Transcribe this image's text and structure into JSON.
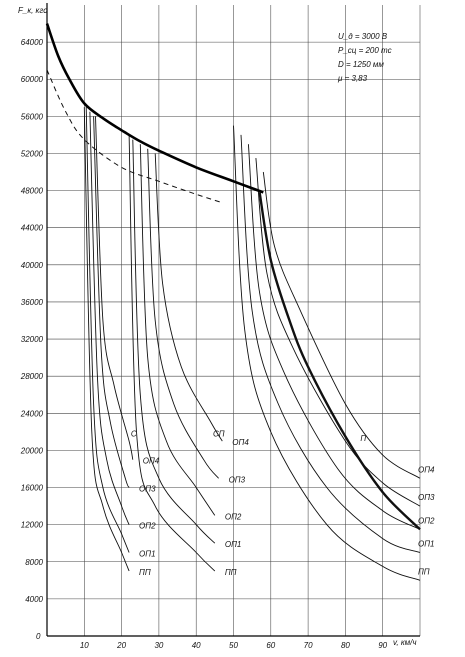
{
  "chart_data": {
    "type": "line",
    "ylabel": "F_к, кгс",
    "xlabel": "v, км/ч",
    "xlim": [
      0,
      100
    ],
    "ylim": [
      0,
      68000
    ],
    "xticks": [
      "10",
      "20",
      "30",
      "40",
      "50",
      "60",
      "70",
      "80",
      "90"
    ],
    "yticks": [
      "4000",
      "8000",
      "12000",
      "16000",
      "20000",
      "24000",
      "28000",
      "32000",
      "36000",
      "40000",
      "44000",
      "48000",
      "52000",
      "56000",
      "60000",
      "64000"
    ],
    "zero_label": "0",
    "grid": true,
    "params": [
      "U_д = 3000 В",
      "P_сц = 200 тс",
      "D = 1250 мм",
      "μ = 3,83"
    ],
    "adhesion_limit": {
      "style": "bold",
      "points": [
        [
          0,
          66000
        ],
        [
          3,
          62500
        ],
        [
          6,
          60000
        ],
        [
          10,
          57400
        ],
        [
          15,
          55800
        ],
        [
          20,
          54500
        ],
        [
          25,
          53300
        ],
        [
          30,
          52300
        ],
        [
          40,
          50500
        ],
        [
          50,
          49000
        ],
        [
          58,
          47800
        ]
      ]
    },
    "dashed_limit": {
      "style": "dashed",
      "points": [
        [
          0,
          61000
        ],
        [
          5,
          56500
        ],
        [
          10,
          53500
        ],
        [
          20,
          50500
        ],
        [
          30,
          49000
        ],
        [
          40,
          47600
        ],
        [
          47,
          46700
        ]
      ]
    },
    "groups": [
      {
        "connection": "С",
        "curves": [
          {
            "name": "ПП",
            "points": [
              [
                10,
                57000
              ],
              [
                12,
                22000
              ],
              [
                15,
                14000
              ],
              [
                20,
                9000
              ],
              [
                22,
                7000
              ]
            ]
          },
          {
            "name": "ОП1",
            "points": [
              [
                10.5,
                57000
              ],
              [
                12.5,
                25000
              ],
              [
                15,
                16000
              ],
              [
                20,
                11000
              ],
              [
                22,
                9000
              ]
            ]
          },
          {
            "name": "ОП2",
            "points": [
              [
                11.5,
                56500
              ],
              [
                13.5,
                28000
              ],
              [
                16,
                19000
              ],
              [
                20,
                14000
              ],
              [
                22,
                12000
              ]
            ]
          },
          {
            "name": "ОП3",
            "points": [
              [
                12.5,
                56000
              ],
              [
                14.5,
                31000
              ],
              [
                17,
                23000
              ],
              [
                21,
                17000
              ],
              [
                22,
                16000
              ]
            ]
          },
          {
            "name": "ОП4",
            "points": [
              [
                13,
                56000
              ],
              [
                15,
                34000
              ],
              [
                18,
                27000
              ],
              [
                22,
                21000
              ],
              [
                23,
                19000
              ]
            ]
          }
        ]
      },
      {
        "connection": "СП",
        "curves": [
          {
            "name": "ПП",
            "points": [
              [
                22,
                54000
              ],
              [
                24,
                22000
              ],
              [
                29,
                14000
              ],
              [
                40,
                9000
              ],
              [
                45,
                7000
              ]
            ]
          },
          {
            "name": "ОП1",
            "points": [
              [
                23,
                53500
              ],
              [
                25,
                26000
              ],
              [
                30,
                17000
              ],
              [
                40,
                12000
              ],
              [
                45,
                10000
              ]
            ]
          },
          {
            "name": "ОП2",
            "points": [
              [
                25,
                53000
              ],
              [
                27,
                30000
              ],
              [
                32,
                21000
              ],
              [
                40,
                16000
              ],
              [
                45,
                13000
              ]
            ]
          },
          {
            "name": "ОП3",
            "points": [
              [
                27,
                52500
              ],
              [
                29,
                34000
              ],
              [
                34,
                25000
              ],
              [
                42,
                19000
              ],
              [
                46,
                17000
              ]
            ]
          },
          {
            "name": "ОП4",
            "points": [
              [
                29,
                52000
              ],
              [
                31,
                38000
              ],
              [
                36,
                29000
              ],
              [
                44,
                23000
              ],
              [
                47,
                21000
              ]
            ]
          }
        ]
      },
      {
        "connection": "П",
        "curves": [
          {
            "name": "ПП",
            "points": [
              [
                50,
                55000
              ],
              [
                53,
                33000
              ],
              [
                60,
                22000
              ],
              [
                75,
                12000
              ],
              [
                90,
                7500
              ],
              [
                100,
                6000
              ]
            ]
          },
          {
            "name": "ОП1",
            "points": [
              [
                52,
                54000
              ],
              [
                55,
                35000
              ],
              [
                62,
                25000
              ],
              [
                75,
                16000
              ],
              [
                90,
                10500
              ],
              [
                100,
                9000
              ]
            ]
          },
          {
            "name": "ОП2",
            "points": [
              [
                54,
                53000
              ],
              [
                57,
                37000
              ],
              [
                64,
                28000
              ],
              [
                78,
                18000
              ],
              [
                90,
                13500
              ],
              [
                100,
                11500
              ]
            ]
          },
          {
            "name": "ОП3",
            "points": [
              [
                56,
                51500
              ],
              [
                59,
                39000
              ],
              [
                66,
                31000
              ],
              [
                80,
                21000
              ],
              [
                90,
                16500
              ],
              [
                100,
                14000
              ]
            ]
          },
          {
            "name": "ОП4",
            "points": [
              [
                58,
                50000
              ],
              [
                61,
                42000
              ],
              [
                68,
                35000
              ],
              [
                80,
                25000
              ],
              [
                90,
                19500
              ],
              [
                100,
                17000
              ]
            ]
          },
          {
            "name": "П_bold",
            "style": "bold",
            "points": [
              [
                57,
                47800
              ],
              [
                60,
                40500
              ],
              [
                65,
                34000
              ],
              [
                70,
                29000
              ],
              [
                80,
                21500
              ],
              [
                90,
                15500
              ],
              [
                100,
                11500
              ]
            ]
          }
        ]
      }
    ]
  }
}
